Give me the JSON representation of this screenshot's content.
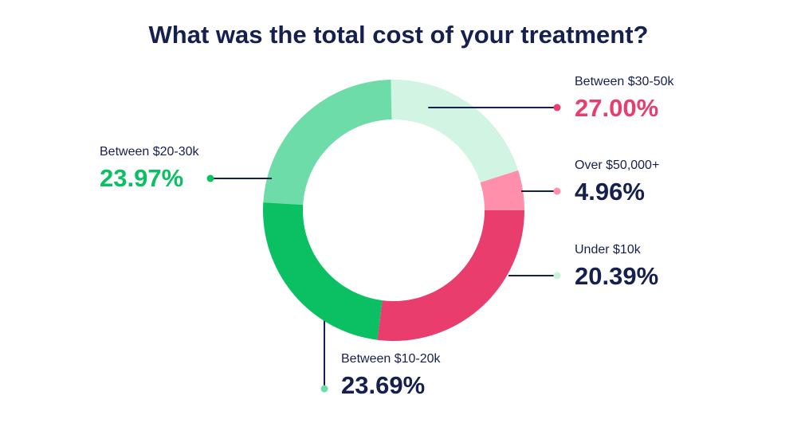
{
  "chart_data": {
    "type": "pie",
    "donut": true,
    "title": "What was the total cost of your treatment?",
    "unit": "%",
    "slices": [
      {
        "key": "over50",
        "label": "Over $50,000+",
        "value": 4.96,
        "display": "4.96%",
        "color": "#ff8fab",
        "label_color": "#16204f"
      },
      {
        "key": "under10",
        "label": "Under $10k",
        "value": 20.39,
        "display": "20.39%",
        "color": "#d2f4e2",
        "label_color": "#16204f"
      },
      {
        "key": "b1020",
        "label": "Between $10-20k",
        "value": 23.69,
        "display": "23.69%",
        "color": "#6edca8",
        "label_color": "#16204f"
      },
      {
        "key": "b2030",
        "label": "Between $20-30k",
        "value": 23.97,
        "display": "23.97%",
        "color": "#0bc062",
        "label_color": "#0bc062"
      },
      {
        "key": "b3050",
        "label": "Between $30-50k",
        "value": 27.0,
        "display": "27.00%",
        "color": "#e93d6e",
        "label_color": "#e93d6e"
      }
    ],
    "leader_line_color": "#16204f"
  }
}
